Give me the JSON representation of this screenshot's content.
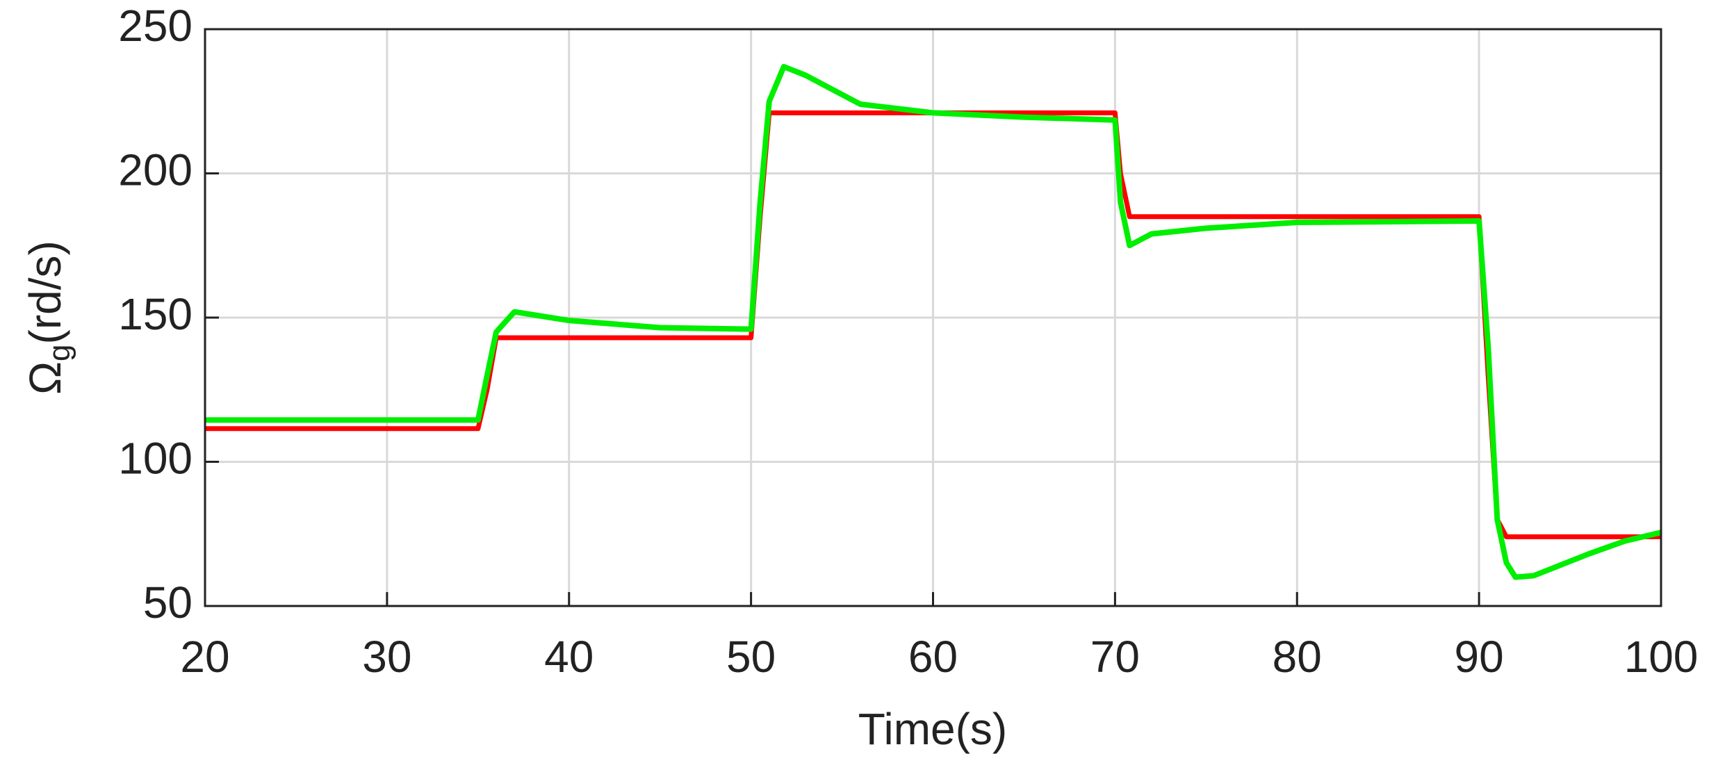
{
  "chart_data": {
    "type": "line",
    "xlabel": "Time(s)",
    "ylabel": [
      "Ω",
      "g",
      "(rd/s)"
    ],
    "x": [
      20,
      35,
      35.5,
      36,
      37,
      40,
      45,
      50,
      50.5,
      51,
      51.8,
      53,
      56,
      60,
      65,
      70,
      70.3,
      70.8,
      72,
      75,
      80,
      90,
      90.5,
      91,
      91.5,
      92,
      93,
      94,
      96,
      98,
      100
    ],
    "series": [
      {
        "color": "#ff0000",
        "values": [
          111.5,
          111.5,
          125,
          143,
          143,
          143,
          143,
          143,
          185,
          221,
          221,
          221,
          221,
          221,
          221,
          221,
          200,
          185,
          185,
          185,
          185,
          185,
          130,
          80,
          74,
          74,
          74,
          74,
          74,
          74,
          74
        ]
      },
      {
        "color": "#00ee00",
        "values": [
          114.5,
          114.5,
          130,
          145,
          152,
          149,
          146.5,
          146,
          190,
          225,
          237,
          234,
          224,
          221,
          219.5,
          218.5,
          190,
          175,
          179,
          181,
          183,
          183.5,
          140,
          80,
          65,
          60,
          60.5,
          63,
          68,
          72.5,
          75.5
        ]
      }
    ],
    "xlim": [
      20,
      100
    ],
    "xticks": [
      20,
      30,
      40,
      50,
      60,
      70,
      80,
      90,
      100
    ],
    "ylim": [
      50,
      250
    ],
    "yticks": [
      50,
      100,
      150,
      200,
      250
    ],
    "grid": true
  }
}
